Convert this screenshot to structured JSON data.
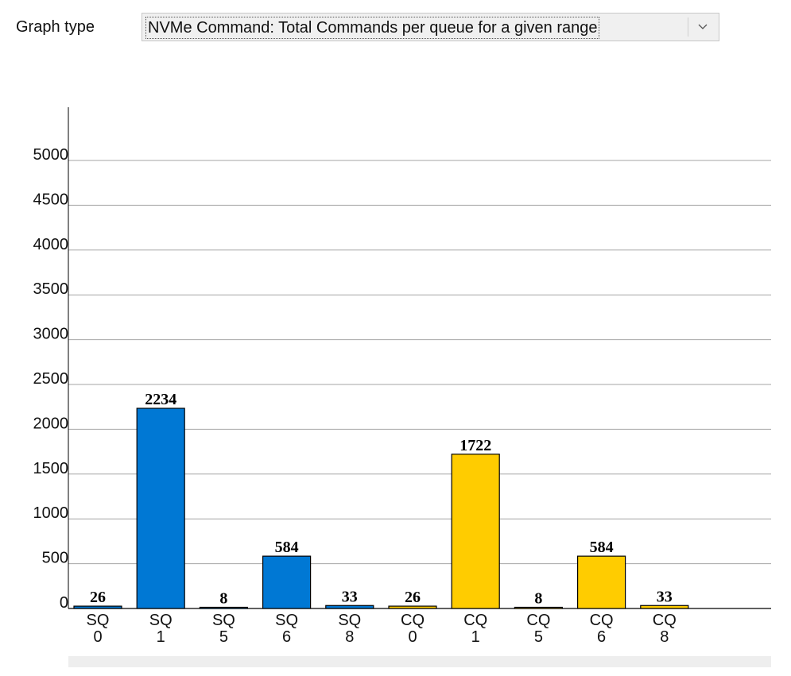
{
  "graph_type": {
    "label": "Graph type",
    "selected": "NVMe Command: Total Commands per queue for a given range",
    "icon": "chevron-down-icon"
  },
  "colors": {
    "sq": "#0078d4",
    "cq": "#ffcc00",
    "axis": "#000000",
    "grid": "#a6a6a6"
  },
  "chart_data": {
    "type": "bar",
    "categories": [
      "SQ 0",
      "SQ 1",
      "SQ 5",
      "SQ 6",
      "SQ 8",
      "CQ 0",
      "CQ 1",
      "CQ 5",
      "CQ 6",
      "CQ 8"
    ],
    "category_lines": [
      [
        "SQ",
        "0"
      ],
      [
        "SQ",
        "1"
      ],
      [
        "SQ",
        "5"
      ],
      [
        "SQ",
        "6"
      ],
      [
        "SQ",
        "8"
      ],
      [
        "CQ",
        "0"
      ],
      [
        "CQ",
        "1"
      ],
      [
        "CQ",
        "5"
      ],
      [
        "CQ",
        "6"
      ],
      [
        "CQ",
        "8"
      ]
    ],
    "values": [
      26,
      2234,
      8,
      584,
      33,
      26,
      1722,
      8,
      584,
      33
    ],
    "bar_colors": [
      "sq",
      "sq",
      "sq",
      "sq",
      "sq",
      "cq",
      "cq",
      "cq",
      "cq",
      "cq"
    ],
    "y_ticks": [
      0,
      500,
      1000,
      1500,
      2000,
      2500,
      3000,
      3500,
      4000,
      4500,
      5000
    ],
    "ylim": [
      0,
      5650
    ],
    "grid": true,
    "title": "",
    "xlabel": "",
    "ylabel": ""
  }
}
